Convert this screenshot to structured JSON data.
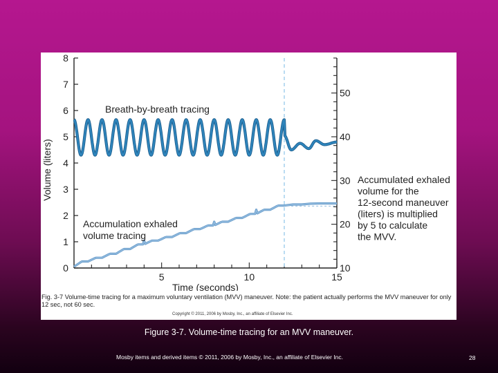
{
  "slide": {
    "caption": "Figure 3-7. Volume-time tracing for an MVV maneuver.",
    "footer": "Mosby items and derived items © 2011, 2006 by Mosby, Inc., an affiliate of Elsevier Inc.",
    "page_number": "28"
  },
  "figure": {
    "caption": "Fig. 3-7  Volume-time tracing for a maximum voluntary ventilation (MVV) maneuver. Note: the patient actually performs the MVV maneuver for only 12 sec, not 60 sec.",
    "copyright": "Copyright © 2011, 2006 by Mosby, Inc., an affiliate of Elsevier Inc."
  },
  "chart_data": {
    "type": "line",
    "xlabel": "Time (seconds)",
    "ylabel": "Volume (liters)",
    "xlim": [
      0,
      15
    ],
    "ylim": [
      0,
      8
    ],
    "x_ticks": [
      5,
      10,
      15
    ],
    "y_ticks": [
      0,
      1,
      2,
      3,
      4,
      5,
      6,
      7,
      8
    ],
    "y2_ticks": [
      10,
      20,
      30,
      40,
      50
    ],
    "y2lim": [
      10,
      58
    ],
    "marker_x": 12,
    "annotations": {
      "breath": "Breath-by-breath tracing",
      "accumulation": [
        "Accumulation exhaled",
        "volume tracing"
      ],
      "note": [
        "Accumulated exhaled",
        "volume for the",
        "12-second maneuver",
        "(liters) is multiplied",
        "by 5 to calculate",
        "the MVV."
      ]
    },
    "series": [
      {
        "role": "breath-by-breath",
        "color": "#2f86bd",
        "high": 5.65,
        "low": 4.3,
        "cycles": 15,
        "duration": 12,
        "after": [
          [
            12.0,
            5.05
          ],
          [
            12.4,
            4.5
          ],
          [
            12.9,
            4.75
          ],
          [
            13.4,
            4.55
          ],
          [
            13.8,
            4.85
          ],
          [
            14.3,
            4.7
          ],
          [
            15.0,
            4.8
          ]
        ]
      },
      {
        "role": "accumulation",
        "color": "#8fb9dd",
        "points": [
          [
            0.0,
            0.05
          ],
          [
            1.0,
            0.3
          ],
          [
            2.0,
            0.45
          ],
          [
            3.0,
            0.68
          ],
          [
            4.0,
            0.9
          ],
          [
            5.0,
            1.08
          ],
          [
            6.0,
            1.25
          ],
          [
            7.0,
            1.45
          ],
          [
            8.0,
            1.62
          ],
          [
            9.0,
            1.8
          ],
          [
            10.0,
            1.98
          ],
          [
            11.0,
            2.18
          ],
          [
            12.0,
            2.38
          ],
          [
            12.5,
            2.42
          ],
          [
            13.0,
            2.42
          ],
          [
            13.5,
            2.45
          ],
          [
            14.0,
            2.46
          ],
          [
            15.0,
            2.46
          ]
        ]
      }
    ]
  }
}
